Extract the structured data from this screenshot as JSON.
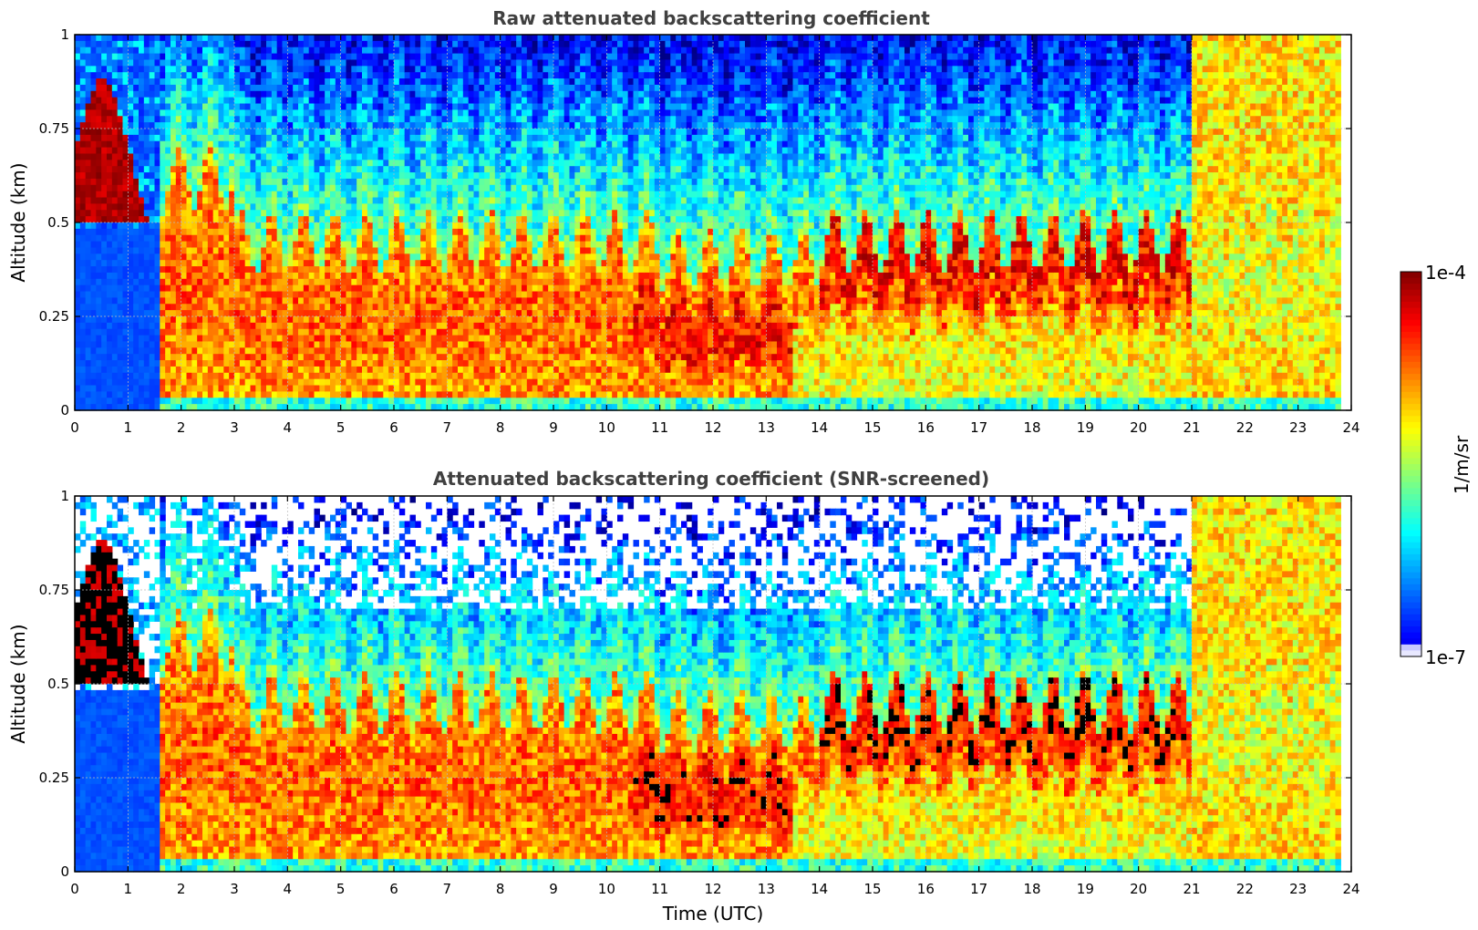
{
  "chart_data": [
    {
      "type": "heatmap",
      "title": "Raw attenuated backscattering coefficient",
      "xlabel": "",
      "ylabel": "Altitude (km)",
      "xlim": [
        0,
        24
      ],
      "ylim": [
        0,
        1
      ],
      "xticks": [
        "0",
        "1",
        "2",
        "3",
        "4",
        "5",
        "6",
        "7",
        "8",
        "9",
        "10",
        "11",
        "12",
        "13",
        "14",
        "15",
        "16",
        "17",
        "18",
        "19",
        "20",
        "21",
        "22",
        "23",
        "24"
      ],
      "yticks": [
        "0",
        "0.25",
        "0.5",
        "0.75",
        "1"
      ],
      "grid": true,
      "screened": false,
      "data_end_time": 23.8
    },
    {
      "type": "heatmap",
      "title": "Attenuated backscattering coefficient (SNR-screened)",
      "xlabel": "Time (UTC)",
      "ylabel": "Altitude (km)",
      "xlim": [
        0,
        24
      ],
      "ylim": [
        0,
        1
      ],
      "xticks": [
        "0",
        "1",
        "2",
        "3",
        "4",
        "5",
        "6",
        "7",
        "8",
        "9",
        "10",
        "11",
        "12",
        "13",
        "14",
        "15",
        "16",
        "17",
        "18",
        "19",
        "20",
        "21",
        "22",
        "23",
        "24"
      ],
      "yticks": [
        "0",
        "0.25",
        "0.5",
        "0.75",
        "1"
      ],
      "grid": true,
      "screened": true,
      "data_end_time": 23.8
    }
  ],
  "colorbar": {
    "label": "1/m/sr",
    "max_label": "1e-4",
    "min_label": "1e-7",
    "scale": "log",
    "colormap": "jet"
  }
}
